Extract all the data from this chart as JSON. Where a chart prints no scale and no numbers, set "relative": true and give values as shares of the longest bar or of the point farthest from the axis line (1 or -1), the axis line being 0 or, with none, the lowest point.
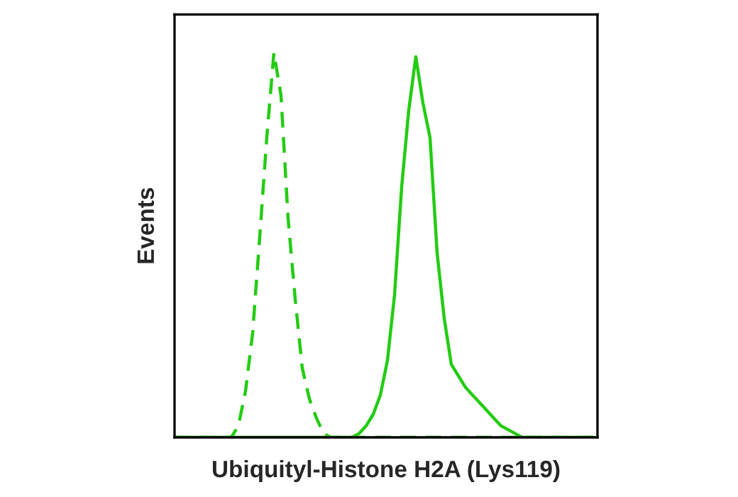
{
  "chart_data": {
    "type": "line",
    "relative": true,
    "xlabel": "Ubiquityl-Histone H2A (Lys119)",
    "ylabel": "Events",
    "grid": false,
    "marker": "none",
    "categories": [
      null,
      null,
      null,
      null,
      null,
      null,
      null,
      null,
      null,
      null,
      null,
      null,
      null,
      null,
      null,
      null,
      null,
      null,
      null,
      null,
      null,
      null,
      null,
      null,
      null,
      null,
      null,
      null,
      null,
      null,
      null,
      null,
      null,
      null,
      null,
      null,
      null,
      null,
      null,
      null,
      null,
      null,
      null,
      null,
      null,
      null,
      null,
      null,
      null,
      null,
      null,
      null,
      null,
      null,
      null,
      null,
      null,
      null,
      null,
      null
    ],
    "series": [
      {
        "color": "#22cc11",
        "line_style": "dashed",
        "values": [
          0,
          0,
          0,
          0,
          0,
          0,
          0,
          0,
          0,
          0.03,
          0.12,
          0.27,
          0.52,
          0.78,
          1.0,
          0.89,
          0.57,
          0.36,
          0.18,
          0.1,
          0.05,
          0.01,
          0,
          0,
          0,
          0,
          0,
          0,
          0,
          0,
          0,
          0,
          0,
          0,
          0,
          0,
          0,
          0,
          0,
          0,
          0,
          0,
          0,
          0,
          0,
          0,
          0,
          0,
          0,
          0,
          0,
          0,
          0,
          0,
          0,
          0,
          0,
          0,
          0,
          0
        ]
      },
      {
        "color": "#22cc11",
        "line_style": "solid",
        "values": [
          0,
          0,
          0,
          0,
          0,
          0,
          0,
          0,
          0,
          0,
          0,
          0,
          0,
          0,
          0,
          0,
          0,
          0,
          0,
          0,
          0,
          0,
          0,
          0,
          0,
          0,
          0.01,
          0.03,
          0.06,
          0.11,
          0.2,
          0.37,
          0.65,
          0.85,
          0.99,
          0.87,
          0.78,
          0.48,
          0.31,
          0.19,
          0.16,
          0.13,
          0.11,
          0.09,
          0.07,
          0.05,
          0.03,
          0.02,
          0.01,
          0,
          0,
          0,
          0,
          0,
          0,
          0,
          0,
          0,
          0,
          0
        ]
      }
    ]
  }
}
